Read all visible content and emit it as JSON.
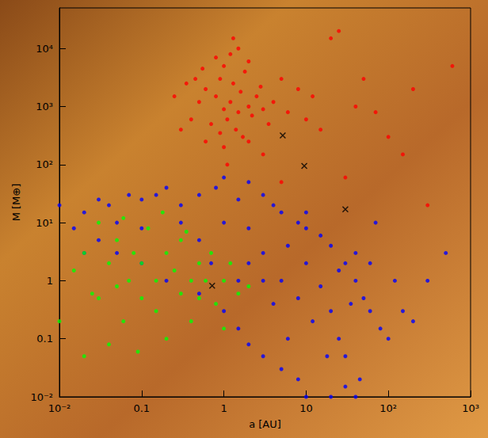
{
  "chart_data": {
    "type": "scatter",
    "x_label": "a [AU]",
    "y_label": "M [M⊕]",
    "log": true,
    "grid": false,
    "xlim": [
      0.01,
      1000
    ],
    "ylim": [
      0.01,
      50000
    ],
    "xticks": [
      {
        "value": 0.01,
        "label": "10⁻²"
      },
      0.1,
      1,
      10,
      {
        "value": 100,
        "label": "10²"
      },
      {
        "value": 1000,
        "label": "10³"
      }
    ],
    "yticks": [
      {
        "value": 0.01,
        "label": "10⁻²"
      },
      0.1,
      1,
      {
        "value": 10,
        "label": "10¹"
      },
      {
        "value": 100,
        "label": "10²"
      },
      {
        "value": 1000,
        "label": "10³"
      },
      {
        "value": 10000,
        "label": "10⁴"
      }
    ],
    "series": [
      {
        "color": "#0000ff",
        "marker": "circle",
        "values": [
          [
            0.01,
            20
          ],
          [
            0.015,
            8
          ],
          [
            0.02,
            15
          ],
          [
            0.03,
            25
          ],
          [
            0.04,
            20
          ],
          [
            0.05,
            10
          ],
          [
            0.07,
            30
          ],
          [
            0.1,
            25
          ],
          [
            0.15,
            30
          ],
          [
            0.2,
            40
          ],
          [
            0.3,
            20
          ],
          [
            0.5,
            30
          ],
          [
            0.8,
            40
          ],
          [
            1,
            60
          ],
          [
            1.5,
            25
          ],
          [
            2,
            50
          ],
          [
            3,
            30
          ],
          [
            4,
            20
          ],
          [
            5,
            15
          ],
          [
            8,
            10
          ],
          [
            10,
            8
          ],
          [
            15,
            6
          ],
          [
            20,
            4
          ],
          [
            30,
            2
          ],
          [
            40,
            1
          ],
          [
            50,
            0.5
          ],
          [
            60,
            0.3
          ],
          [
            80,
            0.15
          ],
          [
            100,
            0.1
          ],
          [
            150,
            0.3
          ],
          [
            200,
            0.2
          ],
          [
            300,
            1
          ],
          [
            500,
            3
          ],
          [
            45,
            0.02
          ],
          [
            40,
            0.01
          ],
          [
            30,
            0.015
          ],
          [
            20,
            0.01
          ],
          [
            10,
            0.01
          ],
          [
            8,
            0.02
          ],
          [
            5,
            0.03
          ],
          [
            3,
            0.05
          ],
          [
            2,
            0.08
          ],
          [
            1.5,
            0.15
          ],
          [
            1,
            0.3
          ],
          [
            0.5,
            0.6
          ],
          [
            0.2,
            1
          ],
          [
            0.1,
            2
          ],
          [
            0.05,
            3
          ],
          [
            0.02,
            3
          ],
          [
            0.03,
            5
          ],
          [
            0.1,
            8
          ],
          [
            0.3,
            10
          ],
          [
            0.5,
            5
          ],
          [
            1,
            10
          ],
          [
            2,
            8
          ],
          [
            3,
            3
          ],
          [
            5,
            1
          ],
          [
            8,
            0.5
          ],
          [
            10,
            2
          ],
          [
            15,
            0.8
          ],
          [
            20,
            0.3
          ],
          [
            25,
            0.1
          ],
          [
            30,
            0.05
          ],
          [
            12,
            0.2
          ],
          [
            6,
            0.1
          ],
          [
            4,
            0.4
          ],
          [
            3,
            1
          ],
          [
            2,
            2
          ],
          [
            1.5,
            1
          ],
          [
            0.7,
            2
          ],
          [
            18,
            0.05
          ],
          [
            35,
            0.4
          ],
          [
            6,
            4
          ],
          [
            10,
            15
          ],
          [
            25,
            1.5
          ],
          [
            70,
            10
          ],
          [
            60,
            2
          ],
          [
            120,
            1
          ],
          [
            40,
            3
          ]
        ]
      },
      {
        "color": "#00ff00",
        "marker": "circle",
        "values": [
          [
            0.01,
            0.2
          ],
          [
            0.015,
            1.5
          ],
          [
            0.02,
            3
          ],
          [
            0.03,
            0.5
          ],
          [
            0.03,
            10
          ],
          [
            0.04,
            2
          ],
          [
            0.05,
            0.8
          ],
          [
            0.05,
            5
          ],
          [
            0.06,
            0.2
          ],
          [
            0.07,
            1
          ],
          [
            0.08,
            3
          ],
          [
            0.1,
            0.5
          ],
          [
            0.1,
            2
          ],
          [
            0.12,
            8
          ],
          [
            0.15,
            1
          ],
          [
            0.15,
            0.3
          ],
          [
            0.2,
            3
          ],
          [
            0.2,
            0.1
          ],
          [
            0.25,
            1.5
          ],
          [
            0.3,
            0.6
          ],
          [
            0.3,
            5
          ],
          [
            0.4,
            1
          ],
          [
            0.4,
            0.2
          ],
          [
            0.5,
            2
          ],
          [
            0.5,
            0.5
          ],
          [
            0.6,
            1
          ],
          [
            0.7,
            3
          ],
          [
            0.8,
            0.4
          ],
          [
            1,
            1
          ],
          [
            1,
            0.15
          ],
          [
            1.2,
            2
          ],
          [
            1.5,
            0.6
          ],
          [
            2,
            0.8
          ],
          [
            0.02,
            0.05
          ],
          [
            0.04,
            0.08
          ],
          [
            0.06,
            12
          ],
          [
            0.09,
            0.06
          ],
          [
            0.35,
            7
          ],
          [
            0.18,
            15
          ],
          [
            0.025,
            0.6
          ]
        ]
      },
      {
        "color": "#ff0000",
        "marker": "circle",
        "values": [
          [
            0.6,
            2000
          ],
          [
            0.8,
            1500
          ],
          [
            1,
            900
          ],
          [
            1.2,
            1200
          ],
          [
            1.5,
            800
          ],
          [
            0.9,
            3000
          ],
          [
            1.1,
            600
          ],
          [
            1.3,
            2500
          ],
          [
            1.6,
            1800
          ],
          [
            2,
            1000
          ],
          [
            2.2,
            700
          ],
          [
            0.7,
            500
          ],
          [
            0.5,
            1200
          ],
          [
            1.8,
            4000
          ],
          [
            2.5,
            1500
          ],
          [
            3,
            900
          ],
          [
            0.4,
            600
          ],
          [
            0.35,
            2500
          ],
          [
            1.4,
            400
          ],
          [
            1.7,
            300
          ],
          [
            2.8,
            2200
          ],
          [
            3.5,
            500
          ],
          [
            4,
            1200
          ],
          [
            1,
            5000
          ],
          [
            1.2,
            8000
          ],
          [
            0.8,
            7000
          ],
          [
            1.5,
            10000
          ],
          [
            2,
            6000
          ],
          [
            5,
            3000
          ],
          [
            6,
            800
          ],
          [
            0.3,
            400
          ],
          [
            0.25,
            1500
          ],
          [
            0.6,
            250
          ],
          [
            1,
            200
          ],
          [
            0.9,
            350
          ],
          [
            2,
            250
          ],
          [
            3,
            150
          ],
          [
            8,
            2000
          ],
          [
            10,
            600
          ],
          [
            12,
            1500
          ],
          [
            20,
            15000
          ],
          [
            25,
            20000
          ],
          [
            40,
            1000
          ],
          [
            50,
            3000
          ],
          [
            100,
            300
          ],
          [
            150,
            150
          ],
          [
            200,
            2000
          ],
          [
            600,
            5000
          ],
          [
            300,
            20
          ],
          [
            5,
            50
          ],
          [
            30,
            60
          ],
          [
            1.1,
            100
          ],
          [
            0.45,
            3000
          ],
          [
            0.55,
            4500
          ],
          [
            1.3,
            15000
          ],
          [
            15,
            400
          ],
          [
            70,
            800
          ]
        ]
      },
      {
        "color": "#000000",
        "marker": "x",
        "values": [
          [
            5.2,
            318
          ],
          [
            9.5,
            95
          ],
          [
            30,
            17
          ],
          [
            0.72,
            0.82
          ]
        ]
      }
    ]
  }
}
